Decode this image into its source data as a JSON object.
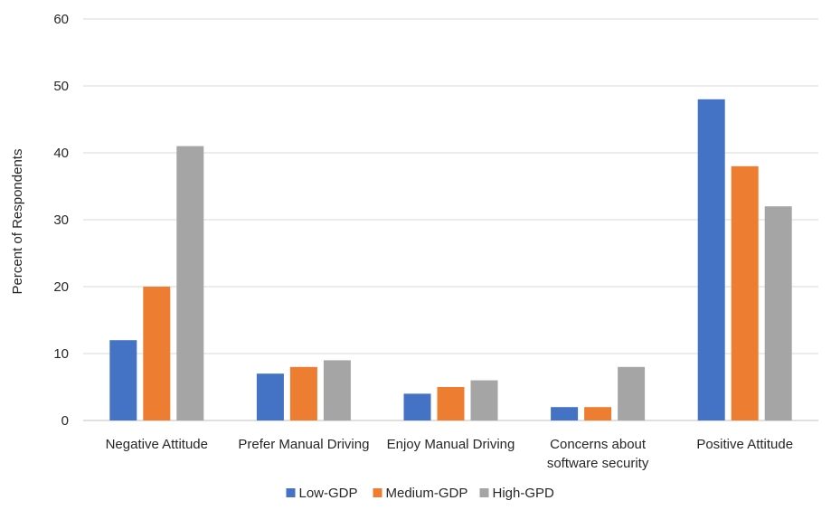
{
  "chart_data": {
    "type": "bar",
    "title": "",
    "xlabel": "",
    "ylabel": "Percent of Respondents",
    "ylim": [
      0,
      60
    ],
    "yticks": [
      0,
      10,
      20,
      30,
      40,
      50,
      60
    ],
    "grid": true,
    "legend_position": "bottom",
    "categories": [
      [
        "Negative Attitude"
      ],
      [
        "Prefer Manual Driving"
      ],
      [
        "Enjoy Manual Driving"
      ],
      [
        "Concerns about",
        "software security"
      ],
      [
        "Positive Attitude"
      ]
    ],
    "series": [
      {
        "name": "Low-GDP",
        "color": "#4472C4",
        "values": [
          12,
          7,
          4,
          2,
          48
        ]
      },
      {
        "name": "Medium-GDP",
        "color": "#ED7D31",
        "values": [
          20,
          8,
          5,
          2,
          38
        ]
      },
      {
        "name": "High-GPD",
        "color": "#A5A5A5",
        "values": [
          41,
          9,
          6,
          8,
          32
        ]
      }
    ]
  }
}
